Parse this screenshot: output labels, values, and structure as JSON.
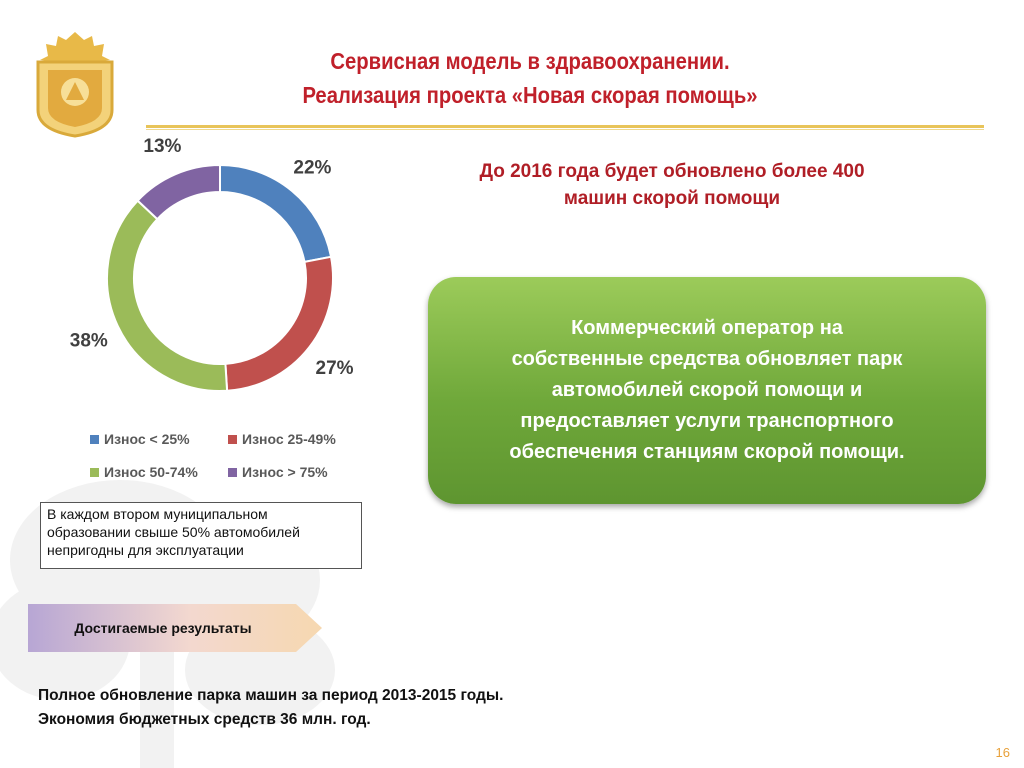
{
  "title": {
    "line1": "Сервисная модель в здравоохранении.",
    "line2": "Реализация проекта «Новая скорая помощь»"
  },
  "headline": {
    "line1": "До 2016 года будет обновлено более 400",
    "line2": "машин скорой помощи"
  },
  "chart_data": {
    "type": "pie",
    "title": "",
    "categories": [
      "Износ < 25%",
      "Износ 25-49%",
      "Износ 50-74%",
      "Износ > 75%"
    ],
    "values": [
      22,
      27,
      38,
      13
    ],
    "labels": [
      "22%",
      "27%",
      "38%",
      "13%"
    ],
    "colors": [
      "#4f81bd",
      "#c0504d",
      "#9bbb59",
      "#8064a2"
    ],
    "donut": true,
    "legend_position": "bottom"
  },
  "callout": {
    "line1": "Коммерческий оператор на",
    "line2": "собственные средства обновляет парк",
    "line3": "автомобилей скорой помощи и",
    "line4": "предоставляет услуги транспортного",
    "line5": "обеспечения станциям скорой помощи."
  },
  "note": {
    "line1": "В каждом втором муниципальном",
    "line2": "образовании свыше 50% автомобилей",
    "line3": "непригодны для эксплуатации"
  },
  "results_arrow": "Достигаемые результаты",
  "results": {
    "line1": "Полное обновление парка машин за период 2013-2015 годы.",
    "line2": "Экономия бюджетных средств  36 млн. год."
  },
  "page_number": "16",
  "colors": {
    "title_red": "#c0202a",
    "accent_gold": "#e8c45a",
    "green_box": "#7aae40"
  }
}
